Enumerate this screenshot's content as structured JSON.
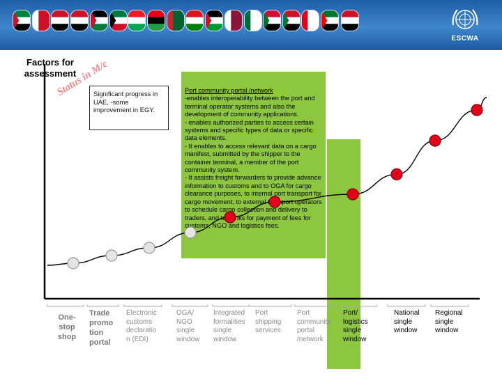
{
  "banner": {
    "flags": [
      {
        "name": "uae-flag-icon",
        "colors": [
          "#00843d",
          "#ffffff",
          "#000000",
          "#ce1126"
        ]
      },
      {
        "name": "bahrain-flag-icon",
        "colors": [
          "#ffffff",
          "#ce1126"
        ]
      },
      {
        "name": "egypt-flag-icon",
        "colors": [
          "#ce1126",
          "#ffffff",
          "#000000"
        ]
      },
      {
        "name": "iraq-flag-icon",
        "colors": [
          "#ce1126",
          "#ffffff",
          "#000000"
        ]
      },
      {
        "name": "jordan-flag-icon",
        "colors": [
          "#000000",
          "#ffffff",
          "#007a3d",
          "#ce1126"
        ]
      },
      {
        "name": "kuwait-flag-icon",
        "colors": [
          "#007a3d",
          "#ffffff",
          "#ce1126",
          "#000000"
        ]
      },
      {
        "name": "lebanon-flag-icon",
        "colors": [
          "#ed1c24",
          "#ffffff",
          "#00a651"
        ]
      },
      {
        "name": "libya-flag-icon",
        "colors": [
          "#e70013",
          "#000000",
          "#239e46"
        ]
      },
      {
        "name": "morocco-flag-icon",
        "colors": [
          "#c1272d",
          "#006233"
        ]
      },
      {
        "name": "oman-flag-icon",
        "colors": [
          "#db161b",
          "#ffffff",
          "#008000"
        ]
      },
      {
        "name": "palestine-flag-icon",
        "colors": [
          "#000000",
          "#ffffff",
          "#009736",
          "#ce1126"
        ]
      },
      {
        "name": "qatar-flag-icon",
        "colors": [
          "#ffffff",
          "#8a1538"
        ]
      },
      {
        "name": "saudi-flag-icon",
        "colors": [
          "#006c35",
          "#ffffff"
        ]
      },
      {
        "name": "sudan-flag-icon",
        "colors": [
          "#d21034",
          "#ffffff",
          "#000000",
          "#007229"
        ]
      },
      {
        "name": "syria-flag-icon",
        "colors": [
          "#ce1126",
          "#ffffff",
          "#000000",
          "#007a3d"
        ]
      },
      {
        "name": "tunisia-flag-icon",
        "colors": [
          "#e70013",
          "#ffffff"
        ]
      },
      {
        "name": "uae2-flag-icon",
        "colors": [
          "#00732f",
          "#ffffff",
          "#000000",
          "#ff0000"
        ]
      },
      {
        "name": "yemen-flag-icon",
        "colors": [
          "#ce1126",
          "#ffffff",
          "#000000"
        ]
      }
    ],
    "logo_text": "ESCWA"
  },
  "y_axis_label": "Factors for assessment",
  "status_label": "Status in M/c",
  "callout": "Significant progress in UAE, -some improvement in EGY.",
  "port_box": {
    "title": "Port community portal /network",
    "description": "-enables interoperability between the port and terminal operator systems and also the development of community applications.\n- enables authorized parties to access certain systems and specific types of data or specific data elements.\n- It enables to access relevant data on a cargo manifest, submitted by the shipper to the container terminal, a member of the port community system.\n- It assists freight forwarders to provide advance information to customs and to OGA for cargo clearance purposes, to internal port transport for cargo movement, to external transport operators to schedule cargo collection and delivery to traders, and to banks for payment of fees for customs, NGO and logistics fees."
  },
  "stages": [
    {
      "label": "One-\nstop\nshop",
      "level": 0.0,
      "status": "grey"
    },
    {
      "label": "Trade\npromo\ntion\nportal",
      "level": 0.05,
      "status": "grey"
    },
    {
      "label": "Electronic\ncustoms\ndeclaratio\nn (EDI)",
      "level": 0.1,
      "status": "grey"
    },
    {
      "label": "OGA/\nNGO\nsingle\nwindow",
      "level": 0.2,
      "status": "grey"
    },
    {
      "label": "Integrated\nformalities\nsingle\nwindow",
      "level": 0.3,
      "status": "red"
    },
    {
      "label": "Port\nshipping\nservices",
      "level": 0.4,
      "status": "red"
    },
    {
      "label": "Port\ncommunity\nportal\n/network",
      "level": 0.45,
      "status": "red"
    },
    {
      "label": "Port/\nlogistics\nsingle\nwindow",
      "level": 0.58,
      "status": "red"
    },
    {
      "label": "National\nsingle\nwindow",
      "level": 0.8,
      "status": "red"
    },
    {
      "label": "Regional\nsingle\nwindow",
      "level": 1.0,
      "status": "red"
    }
  ],
  "colors": {
    "green": "#8dc63f",
    "red_marker": "#e2001a",
    "grey_marker": "#e4e4e4",
    "axis": "#000000"
  }
}
